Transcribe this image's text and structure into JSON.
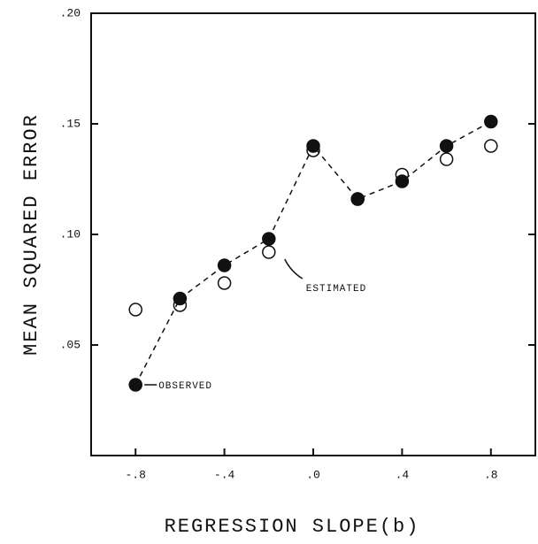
{
  "chart_data": {
    "type": "scatter",
    "xlabel": "REGRESSION SLOPE(b)",
    "ylabel": "MEAN SQUARED ERROR",
    "xlim": [
      -1.0,
      1.0
    ],
    "ylim": [
      0,
      0.2
    ],
    "xticks": [
      {
        "value": -0.8,
        "label": "-.8"
      },
      {
        "value": -0.4,
        "label": "-.4"
      },
      {
        "value": 0,
        "label": ".0"
      },
      {
        "value": 0.4,
        "label": ".4"
      },
      {
        "value": 0.8,
        "label": ".8"
      }
    ],
    "yticks": [
      {
        "value": 0.05,
        "label": ".05"
      },
      {
        "value": 0.1,
        "label": ".10"
      },
      {
        "value": 0.15,
        "label": ".15"
      },
      {
        "value": 0.2,
        "label": ".20"
      }
    ],
    "x": [
      -0.8,
      -0.6,
      -0.4,
      -0.2,
      0,
      0.2,
      0.4,
      0.6,
      0.8
    ],
    "series": [
      {
        "name": "OBSERVED",
        "color": "#111111",
        "values": [
          0.032,
          0.071,
          0.086,
          0.098,
          0.14,
          0.116,
          0.124,
          0.14,
          0.151
        ]
      },
      {
        "name": "ESTIMATED",
        "color": "#111111",
        "values": [
          0.066,
          0.068,
          0.078,
          0.092,
          0.138,
          0.116,
          0.127,
          0.134,
          0.14
        ]
      }
    ]
  }
}
